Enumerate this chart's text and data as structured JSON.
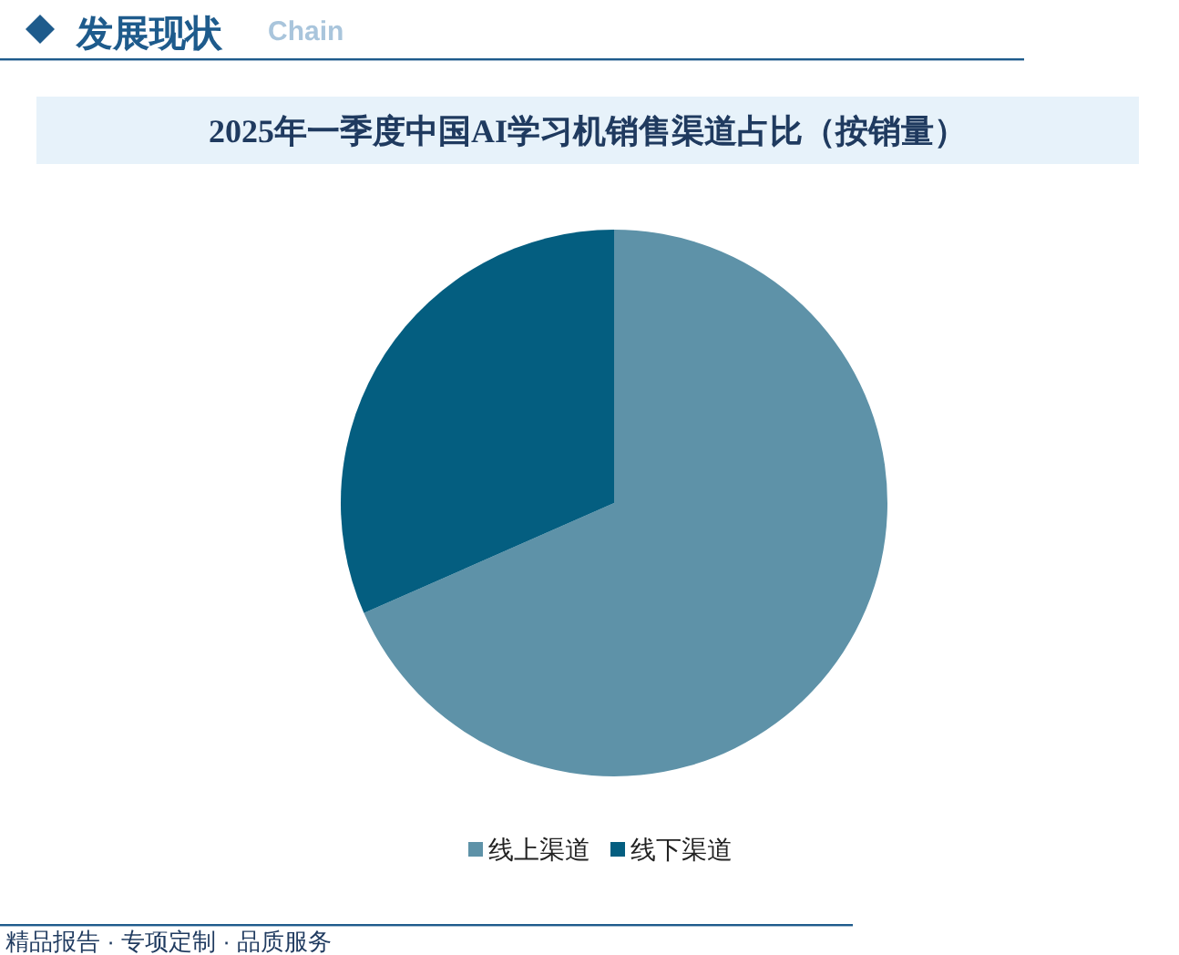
{
  "chart_data": {
    "type": "pie",
    "title": "2025年一季度中国AI学习机销售渠道占比（按销量）",
    "categories": [
      "线上渠道",
      "线下渠道"
    ],
    "values": [
      68.4,
      31.6
    ],
    "colors": [
      "#5e92a8",
      "#045e80"
    ],
    "legend": "bottom",
    "annotations": [
      "发展现状",
      "Chain",
      "精品报告 · 专项定制 · 品质服务"
    ]
  }
}
